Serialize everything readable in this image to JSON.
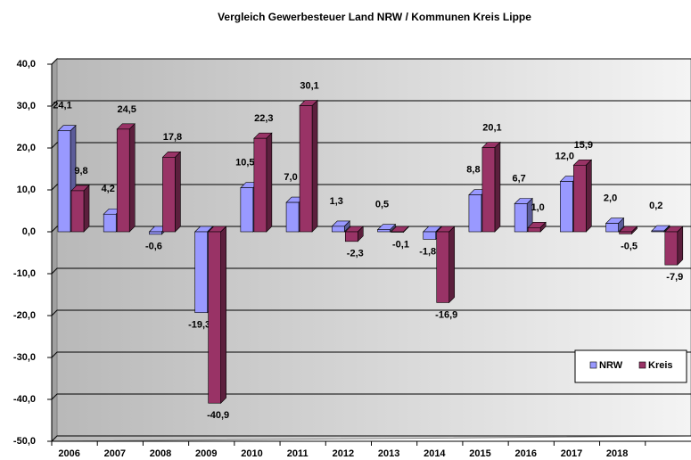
{
  "chart_data": {
    "type": "bar3d",
    "title": "Vergleich Gewerbesteuer Land NRW / Kommunen  Kreis Lippe",
    "categories": [
      "2006",
      "2007",
      "2008",
      "2009",
      "2010",
      "2011",
      "2012",
      "2013",
      "2014",
      "2015",
      "2016",
      "2017",
      "2018",
      null
    ],
    "series": [
      {
        "name": "NRW",
        "color": "#9999ff",
        "values": [
          24.1,
          4.2,
          -0.6,
          -19.3,
          10.5,
          7.0,
          1.3,
          0.5,
          -1.8,
          8.8,
          6.7,
          12.0,
          2.0,
          0.2
        ],
        "value_labels": [
          "24,1",
          "4,2",
          "-0,6",
          "-19,3",
          "10,5",
          "7,0",
          "1,3",
          "0,5",
          "-1,8",
          "8,8",
          "6,7",
          "12,0",
          "2,0",
          "0,2"
        ]
      },
      {
        "name": "Kreis",
        "color": "#993366",
        "values": [
          9.8,
          24.5,
          17.8,
          -40.9,
          22.3,
          30.1,
          -2.3,
          -0.1,
          -16.9,
          20.1,
          1.0,
          15.9,
          -0.5,
          -7.9
        ],
        "value_labels": [
          "9,8",
          "24,5",
          "17,8",
          "-40,9",
          "22,3",
          "30,1",
          "-2,3",
          "-0,1",
          "-16,9",
          "20,1",
          "1,0",
          "15,9",
          "-0,5",
          "-7,9"
        ]
      }
    ],
    "ylim": [
      -50,
      40
    ],
    "yticks": [
      {
        "value": -50,
        "label": "-50,0"
      },
      {
        "value": -40,
        "label": "-40,0"
      },
      {
        "value": -30,
        "label": "-30,0"
      },
      {
        "value": -20,
        "label": "-20,0"
      },
      {
        "value": -10,
        "label": "-10,0"
      },
      {
        "value": 0,
        "label": "0,0"
      },
      {
        "value": 10,
        "label": "10,0"
      },
      {
        "value": 20,
        "label": "20,0"
      },
      {
        "value": 30,
        "label": "30,0"
      },
      {
        "value": 40,
        "label": "40,0"
      }
    ],
    "grid": true,
    "legend": "bottom-right"
  }
}
